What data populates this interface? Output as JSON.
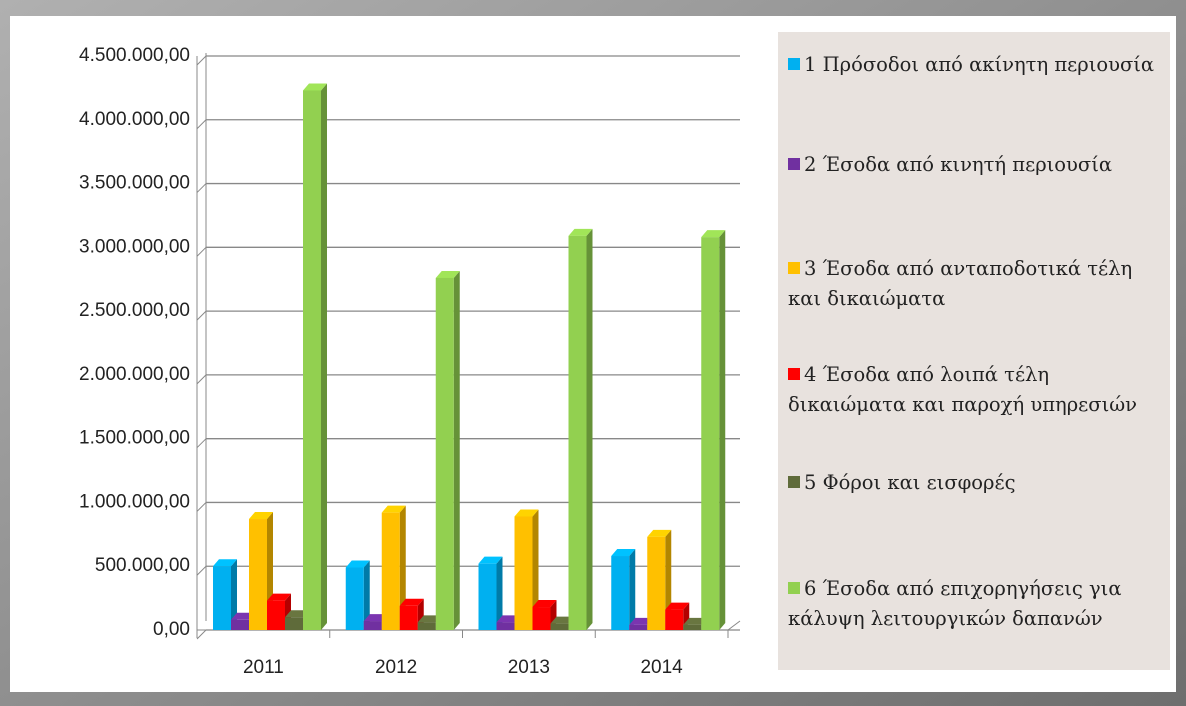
{
  "chart_data": {
    "type": "bar",
    "categories": [
      "2011",
      "2012",
      "2013",
      "2014"
    ],
    "series": [
      {
        "name": "1 Πρόσοδοι από ακίνητη περιουσία",
        "color": "#00b0f0",
        "values": [
          500000,
          490000,
          520000,
          580000
        ]
      },
      {
        "name": "2 Έσοδα από κινητή περιουσία",
        "color": "#7030a0",
        "values": [
          80000,
          70000,
          60000,
          40000
        ]
      },
      {
        "name": "3 Έσοδα από ανταποδοτικά τέλη και δικαιώματα",
        "color": "#ffc000",
        "values": [
          870000,
          920000,
          890000,
          730000
        ]
      },
      {
        "name": "4 Έσοδα από λοιπά τέλη δικαιώματα και παροχή υπηρεσιών",
        "color": "#ff0000",
        "values": [
          230000,
          190000,
          180000,
          160000
        ]
      },
      {
        "name": "5 Φόροι και εισφορές",
        "color": "#5f6b3a",
        "values": [
          100000,
          60000,
          50000,
          40000
        ]
      },
      {
        "name": "6 Έσοδα από επιχορηγήσεις για κάλυψη λειτουργικών δαπανών",
        "color": "#92d050",
        "values": [
          4230000,
          2760000,
          3090000,
          3080000
        ]
      }
    ],
    "ylim": [
      0,
      4500000
    ],
    "yticks": [
      {
        "value": 0,
        "label": "0,00"
      },
      {
        "value": 500000,
        "label": "500.000,00"
      },
      {
        "value": 1000000,
        "label": "1.000.000,00"
      },
      {
        "value": 1500000,
        "label": "1.500.000,00"
      },
      {
        "value": 2000000,
        "label": "2.000.000,00"
      },
      {
        "value": 2500000,
        "label": "2.500.000,00"
      },
      {
        "value": 3000000,
        "label": "3.000.000,00"
      },
      {
        "value": 3500000,
        "label": "3.500.000,00"
      },
      {
        "value": 4000000,
        "label": "4.000.000,00"
      },
      {
        "value": 4500000,
        "label": "4.500.000,00"
      }
    ],
    "grid": true,
    "legend": "right"
  }
}
